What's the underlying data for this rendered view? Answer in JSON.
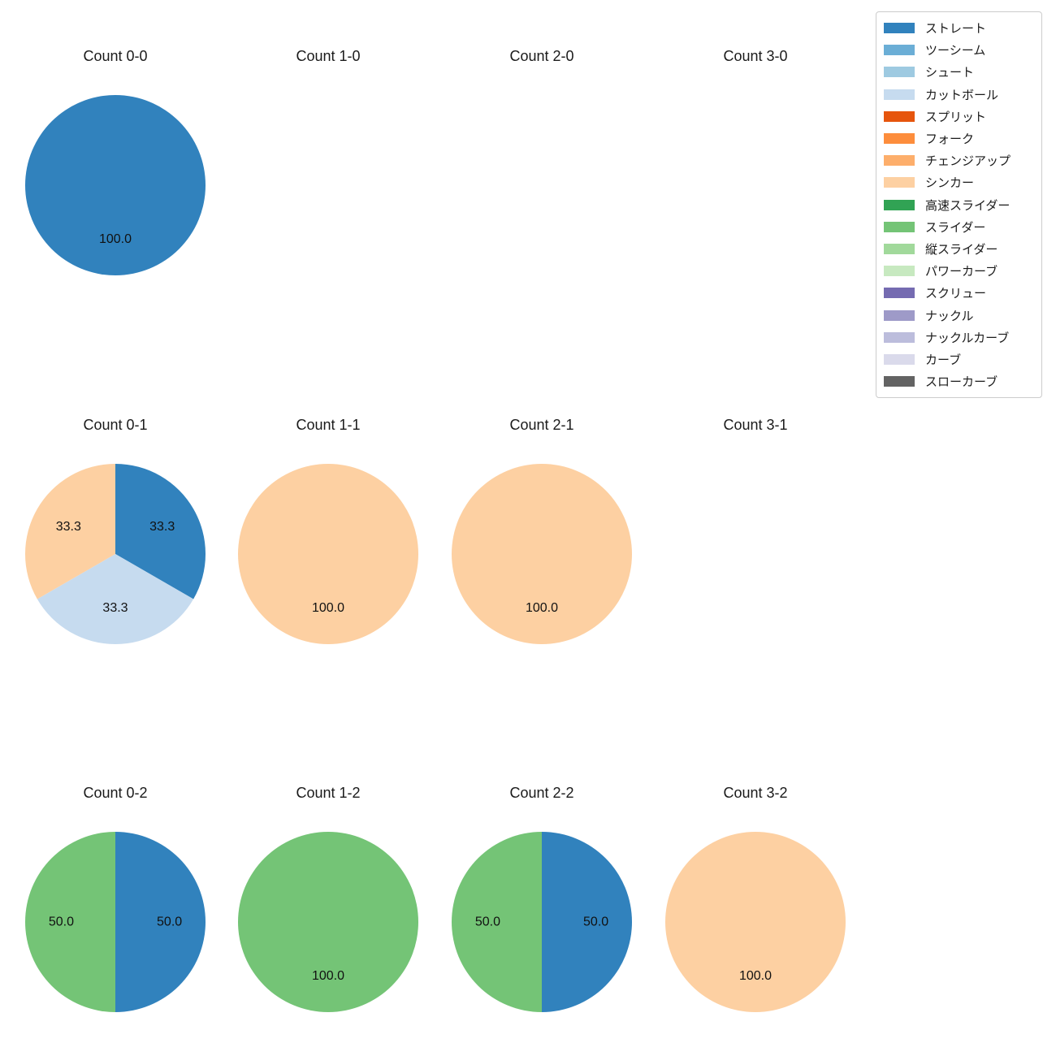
{
  "figure": {
    "background": "#ffffff",
    "text_color": "#1a1a1a"
  },
  "palette": {
    "ストレート": "#3182bd",
    "ツーシーム": "#6baed6",
    "シュート": "#9ecae1",
    "カットボール": "#c6dbef",
    "スプリット": "#e6550d",
    "フォーク": "#fd8d3c",
    "チェンジアップ": "#fdae6b",
    "シンカー": "#fdd0a2",
    "高速スライダー": "#31a354",
    "スライダー": "#74c476",
    "縦スライダー": "#a1d99b",
    "パワーカーブ": "#c7e9c0",
    "スクリュー": "#756bb1",
    "ナックル": "#9e9ac8",
    "ナックルカーブ": "#bcbddc",
    "カーブ": "#dadaeb",
    "スローカーブ": "#636363"
  },
  "legend": {
    "position": "upper right",
    "items": [
      {
        "label": "ストレート",
        "color": "#3182bd"
      },
      {
        "label": "ツーシーム",
        "color": "#6baed6"
      },
      {
        "label": "シュート",
        "color": "#9ecae1"
      },
      {
        "label": "カットボール",
        "color": "#c6dbef"
      },
      {
        "label": "スプリット",
        "color": "#e6550d"
      },
      {
        "label": "フォーク",
        "color": "#fd8d3c"
      },
      {
        "label": "チェンジアップ",
        "color": "#fdae6b"
      },
      {
        "label": "シンカー",
        "color": "#fdd0a2"
      },
      {
        "label": "高速スライダー",
        "color": "#31a354"
      },
      {
        "label": "スライダー",
        "color": "#74c476"
      },
      {
        "label": "縦スライダー",
        "color": "#a1d99b"
      },
      {
        "label": "パワーカーブ",
        "color": "#c7e9c0"
      },
      {
        "label": "スクリュー",
        "color": "#756bb1"
      },
      {
        "label": "ナックル",
        "color": "#9e9ac8"
      },
      {
        "label": "ナックルカーブ",
        "color": "#bcbddc"
      },
      {
        "label": "カーブ",
        "color": "#dadaeb"
      },
      {
        "label": "スローカーブ",
        "color": "#636363"
      }
    ]
  },
  "chart_data": [
    {
      "type": "pie",
      "title": "Count 0-0",
      "start_angle": 90,
      "direction": "clockwise",
      "slices": [
        {
          "label": "ストレート",
          "value": 100.0
        }
      ]
    },
    {
      "type": "pie",
      "title": "Count 1-0",
      "start_angle": 90,
      "direction": "clockwise",
      "slices": []
    },
    {
      "type": "pie",
      "title": "Count 2-0",
      "start_angle": 90,
      "direction": "clockwise",
      "slices": []
    },
    {
      "type": "pie",
      "title": "Count 3-0",
      "start_angle": 90,
      "direction": "clockwise",
      "slices": []
    },
    {
      "type": "pie",
      "title": "Count 0-1",
      "start_angle": 90,
      "direction": "clockwise",
      "slices": [
        {
          "label": "ストレート",
          "value": 33.3
        },
        {
          "label": "カットボール",
          "value": 33.3
        },
        {
          "label": "シンカー",
          "value": 33.3
        }
      ]
    },
    {
      "type": "pie",
      "title": "Count 1-1",
      "start_angle": 90,
      "direction": "clockwise",
      "slices": [
        {
          "label": "シンカー",
          "value": 100.0
        }
      ]
    },
    {
      "type": "pie",
      "title": "Count 2-1",
      "start_angle": 90,
      "direction": "clockwise",
      "slices": [
        {
          "label": "シンカー",
          "value": 100.0
        }
      ]
    },
    {
      "type": "pie",
      "title": "Count 3-1",
      "start_angle": 90,
      "direction": "clockwise",
      "slices": []
    },
    {
      "type": "pie",
      "title": "Count 0-2",
      "start_angle": 90,
      "direction": "clockwise",
      "slices": [
        {
          "label": "ストレート",
          "value": 50.0
        },
        {
          "label": "スライダー",
          "value": 50.0
        }
      ]
    },
    {
      "type": "pie",
      "title": "Count 1-2",
      "start_angle": 90,
      "direction": "clockwise",
      "slices": [
        {
          "label": "スライダー",
          "value": 100.0
        }
      ]
    },
    {
      "type": "pie",
      "title": "Count 2-2",
      "start_angle": 90,
      "direction": "clockwise",
      "slices": [
        {
          "label": "ストレート",
          "value": 50.0
        },
        {
          "label": "スライダー",
          "value": 50.0
        }
      ]
    },
    {
      "type": "pie",
      "title": "Count 3-2",
      "start_angle": 90,
      "direction": "clockwise",
      "slices": [
        {
          "label": "シンカー",
          "value": 100.0
        }
      ]
    }
  ]
}
